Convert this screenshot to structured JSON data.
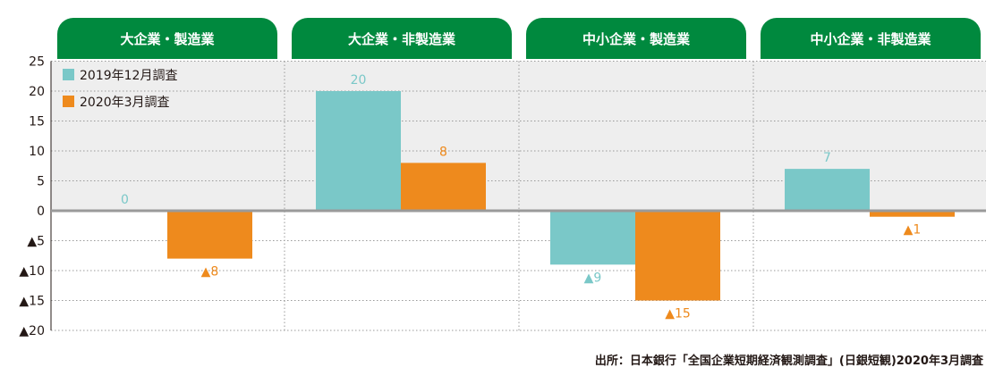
{
  "chart_data": {
    "type": "bar",
    "panels": [
      {
        "title": "大企業・製造業",
        "values": [
          0,
          -8
        ],
        "labels": [
          "0",
          "▲8"
        ]
      },
      {
        "title": "大企業・非製造業",
        "values": [
          20,
          8
        ],
        "labels": [
          "20",
          "8"
        ]
      },
      {
        "title": "中小企業・製造業",
        "values": [
          -9,
          -15
        ],
        "labels": [
          "▲9",
          "▲15"
        ]
      },
      {
        "title": "中小企業・非製造業",
        "values": [
          7,
          -1
        ],
        "labels": [
          "7",
          "▲1"
        ]
      }
    ],
    "series": [
      {
        "name": "2019年12月調査",
        "color": "#7ac8c8"
      },
      {
        "name": "2020年3月調査",
        "color": "#ee8a1d"
      }
    ],
    "ylim": [
      -20,
      25
    ],
    "yticks": [
      25,
      20,
      15,
      10,
      5,
      0,
      -5,
      -10,
      -15,
      -20
    ],
    "ytick_labels": [
      "25",
      "20",
      "15",
      "10",
      "5",
      "0",
      "▲5",
      "▲10",
      "▲15",
      "▲20"
    ],
    "grid": true,
    "legend_position": "top-left"
  },
  "source": "出所：日本銀行「全国企業短期経済観測調査」(日銀短観)2020年3月調査"
}
